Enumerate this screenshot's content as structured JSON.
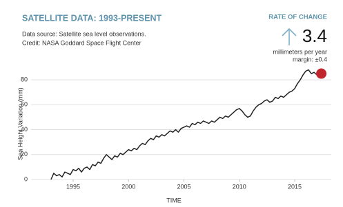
{
  "chart_data": {
    "type": "line",
    "title": "SATELLITE DATA: 1993-PRESENT",
    "source": [
      "Data source: Satellite sea level observations.",
      "Credit: NASA Goddard Space Flight Center"
    ],
    "rate_label": "RATE OF CHANGE",
    "rate": 3.4,
    "rate_unit": "millimeters per year",
    "rate_margin": "margin: ±0.4",
    "x_label": "TIME",
    "y_label": "Sea Height Variation (mm)",
    "color": "#222222",
    "end_marker_color": "#c0272d",
    "x": [
      1993.0,
      1993.25,
      1993.5,
      1993.75,
      1994.0,
      1994.25,
      1994.5,
      1994.75,
      1995.0,
      1995.25,
      1995.5,
      1995.75,
      1996.0,
      1996.25,
      1996.5,
      1996.75,
      1997.0,
      1997.25,
      1997.5,
      1997.75,
      1998.0,
      1998.25,
      1998.5,
      1998.75,
      1999.0,
      1999.25,
      1999.5,
      1999.75,
      2000.0,
      2000.25,
      2000.5,
      2000.75,
      2001.0,
      2001.25,
      2001.5,
      2001.75,
      2002.0,
      2002.25,
      2002.5,
      2002.75,
      2003.0,
      2003.25,
      2003.5,
      2003.75,
      2004.0,
      2004.25,
      2004.5,
      2004.75,
      2005.0,
      2005.25,
      2005.5,
      2005.75,
      2006.0,
      2006.25,
      2006.5,
      2006.75,
      2007.0,
      2007.25,
      2007.5,
      2007.75,
      2008.0,
      2008.25,
      2008.5,
      2008.75,
      2009.0,
      2009.25,
      2009.5,
      2009.75,
      2010.0,
      2010.25,
      2010.5,
      2010.75,
      2011.0,
      2011.25,
      2011.5,
      2011.75,
      2012.0,
      2012.25,
      2012.5,
      2012.75,
      2013.0,
      2013.25,
      2013.5,
      2013.75,
      2014.0,
      2014.25,
      2014.5,
      2014.75,
      2015.0,
      2015.25,
      2015.5,
      2015.75,
      2016.0,
      2016.25,
      2016.5,
      2016.75,
      2017.0,
      2017.25,
      2017.4
    ],
    "values": [
      0,
      5,
      3,
      4,
      2,
      6,
      5,
      4,
      8,
      7,
      9,
      6,
      9,
      10,
      8,
      12,
      11,
      14,
      13,
      17,
      20,
      18,
      16,
      19,
      18,
      21,
      20,
      22,
      24,
      23,
      25,
      24,
      27,
      29,
      28,
      31,
      33,
      32,
      35,
      34,
      36,
      35,
      37,
      39,
      38,
      40,
      38,
      41,
      42,
      43,
      42,
      45,
      44,
      46,
      45,
      47,
      46,
      45,
      47,
      46,
      48,
      50,
      49,
      51,
      50,
      52,
      54,
      56,
      57,
      55,
      52,
      50,
      51,
      55,
      58,
      60,
      61,
      63,
      64,
      62,
      63,
      66,
      65,
      67,
      66,
      68,
      70,
      71,
      73,
      77,
      80,
      84,
      87,
      88,
      85,
      86,
      84,
      87,
      85
    ],
    "xlim": [
      1991.2,
      2018.3
    ],
    "xticks": [
      1995,
      2000,
      2005,
      2010,
      2015
    ],
    "ylim": [
      0,
      90
    ],
    "yticks": [
      0,
      20,
      40,
      60,
      80
    ],
    "grid": true
  }
}
